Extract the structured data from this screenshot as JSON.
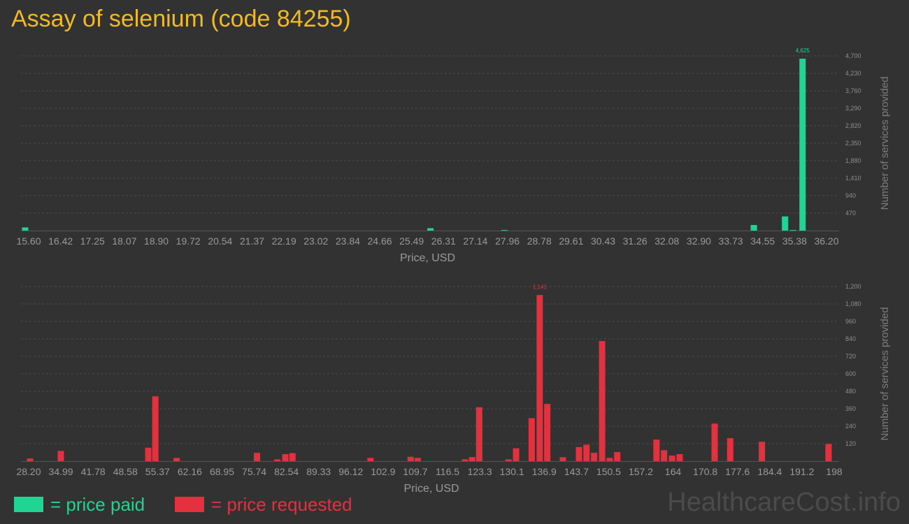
{
  "title": "Assay of selenium (code 84255)",
  "colors": {
    "paid": "#22d494",
    "requested": "#e2313f",
    "title": "#f2b926",
    "background": "#323232"
  },
  "legend": {
    "paid": "= price paid",
    "requested": "= price requested"
  },
  "watermark": "HealthcareCost.info",
  "chart_data": [
    {
      "type": "bar",
      "series": [
        {
          "name": "price paid"
        }
      ],
      "xlabel": "Price, USD",
      "ylabel": "Number of services provided",
      "xlim": [
        15.6,
        36.2
      ],
      "ylim": [
        0,
        4700
      ],
      "xticks": [
        "15.60",
        "16.42",
        "17.25",
        "18.07",
        "18.90",
        "19.72",
        "20.54",
        "21.37",
        "22.19",
        "23.02",
        "23.84",
        "24.66",
        "25.49",
        "26.31",
        "27.14",
        "27.96",
        "28.78",
        "29.61",
        "30.43",
        "31.26",
        "32.08",
        "32.90",
        "33.73",
        "34.55",
        "35.38",
        "36.20"
      ],
      "yticks": [
        470,
        940,
        1410,
        1880,
        2350,
        2820,
        3290,
        3760,
        4230,
        4700
      ],
      "ytick_labels": [
        "470",
        "940",
        "1,410",
        "1,880",
        "2,350",
        "2,820",
        "3,290",
        "3,760",
        "4,230",
        "4,700"
      ],
      "x": [
        15.6,
        26.0,
        27.9,
        34.3,
        35.1,
        35.3,
        35.55
      ],
      "values": [
        85,
        65,
        15,
        150,
        380,
        15,
        4625
      ],
      "max_label": "4,625",
      "grid": true
    },
    {
      "type": "bar",
      "series": [
        {
          "name": "price requested"
        }
      ],
      "xlabel": "Price, USD",
      "ylabel": "Number of services provided",
      "xlim": [
        28.2,
        198
      ],
      "ylim": [
        0,
        1200
      ],
      "xticks": [
        "28.20",
        "34.99",
        "41.78",
        "48.58",
        "55.37",
        "62.16",
        "68.95",
        "75.74",
        "82.54",
        "89.33",
        "96.12",
        "102.9",
        "109.7",
        "116.5",
        "123.3",
        "130.1",
        "136.9",
        "143.7",
        "150.5",
        "157.2",
        "164",
        "170.8",
        "177.6",
        "184.4",
        "191.2",
        "198"
      ],
      "yticks": [
        120,
        240,
        360,
        480,
        600,
        720,
        840,
        960,
        1080,
        1200
      ],
      "ytick_labels": [
        "120",
        "240",
        "360",
        "480",
        "600",
        "720",
        "840",
        "960",
        "1,080",
        "1,200"
      ],
      "x": [
        28.5,
        35.0,
        53.5,
        55.0,
        59.5,
        76.5,
        80.8,
        82.5,
        84.0,
        100.5,
        109.0,
        110.5,
        120.5,
        122.0,
        123.5,
        129.7,
        131.3,
        134.6,
        136.3,
        137.9,
        141.2,
        144.6,
        146.2,
        147.8,
        149.5,
        151.1,
        152.7,
        161.0,
        162.6,
        164.3,
        165.9,
        173.3,
        176.6,
        183.3,
        197.4
      ],
      "values": [
        18,
        70,
        92,
        445,
        22,
        57,
        12,
        48,
        55,
        22,
        30,
        22,
        12,
        28,
        370,
        12,
        88,
        295,
        1141,
        393,
        27,
        97,
        113,
        57,
        825,
        22,
        62,
        148,
        75,
        38,
        48,
        258,
        158,
        133,
        118
      ],
      "max_label": "1,141",
      "grid": true
    }
  ]
}
